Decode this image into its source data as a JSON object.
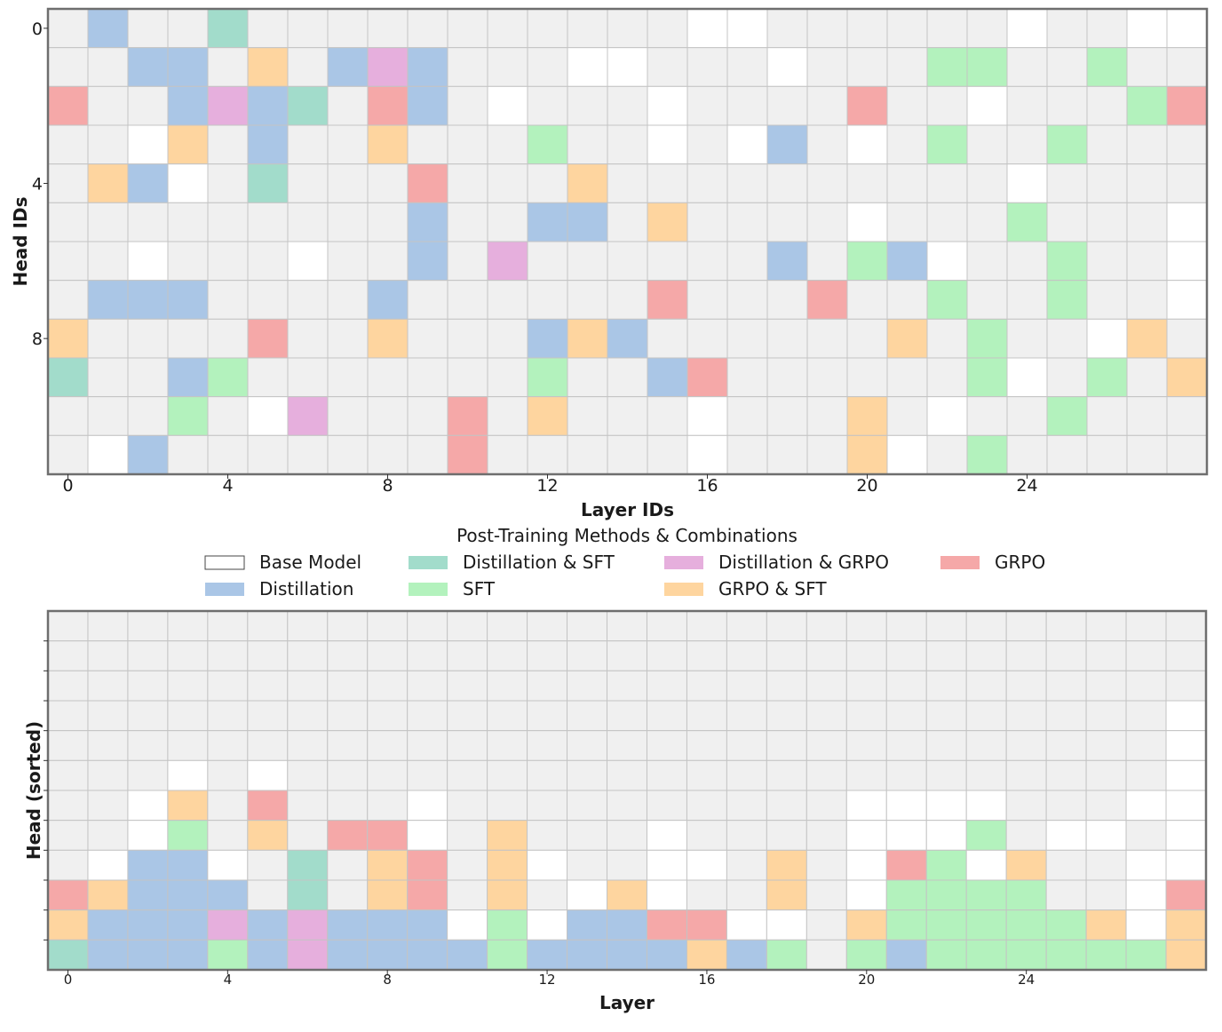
{
  "colors": {
    "0": "#ffffff",
    "1": "#f0f0f0",
    "2": "#aac6e6",
    "3": "#a2dccb",
    "4": "#b3f2bd",
    "5": "#e6afdd",
    "6": "#fed59f",
    "7": "#f5a8a8",
    "gridline": "#c4c4c4",
    "frame": "#6e6e6e"
  },
  "chart_data": [
    {
      "type": "heatmap",
      "xlabel": "Layer IDs",
      "ylabel": "Head IDs",
      "x_ticks": [
        "0",
        "4",
        "8",
        "12",
        "16",
        "20",
        "24"
      ],
      "y_ticks": [
        "0",
        "4",
        "8"
      ],
      "grid": [
        "12113111111111110011111101100",
        "11221612521110011101114411411",
        "71125231721011101111711011147",
        "11061211611141101021014114111",
        "16201311171116111111111101111",
        "11111111121122161111011141110",
        "11011101121511111121420114110",
        "12221111211111171117114114110",
        "61111711611126211111161411061",
        "31124111111141127111111401416",
        "11141051117161110111610114111",
        "10211111117111110111601411111"
      ]
    },
    {
      "type": "heatmap",
      "xlabel": "Layer",
      "ylabel": "Head (sorted)",
      "x_ticks": [
        "0",
        "4",
        "8",
        "12",
        "16",
        "20",
        "24"
      ],
      "grid": [
        "11111111111111111111111111111",
        "11111111111111111111111111111",
        "11111111111111111111111111111",
        "11111111111111111111111111110",
        "11111111111111111111111111110",
        "11101011111111111111111111110",
        "11061711101111111111000011100",
        "11041617701611101111000410010",
        "10220131671601100161074061100",
        "76222131671610601161044441107",
        "62225252220402277001644444606",
        "32224252222422226241424444446"
      ]
    }
  ],
  "legend": {
    "title": "Post-Training Methods & Combinations",
    "entries": [
      {
        "key": "0",
        "label": "Base Model"
      },
      {
        "key": "2",
        "label": "Distillation"
      },
      {
        "key": "3",
        "label": "Distillation & SFT"
      },
      {
        "key": "4",
        "label": "SFT"
      },
      {
        "key": "5",
        "label": "Distillation & GRPO"
      },
      {
        "key": "6",
        "label": "GRPO & SFT"
      },
      {
        "key": "7",
        "label": "GRPO"
      }
    ]
  }
}
